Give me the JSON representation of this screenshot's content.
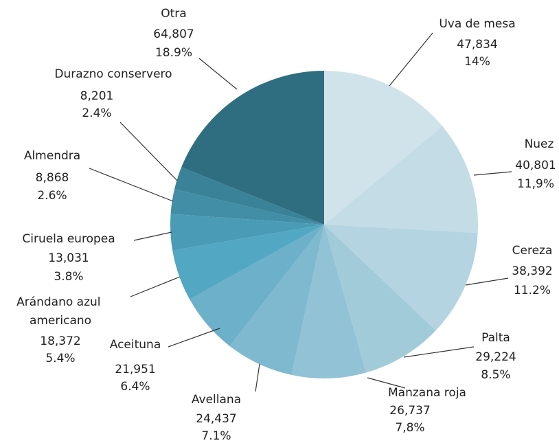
{
  "chart_data": {
    "type": "pie",
    "categories": [
      "Uva de mesa",
      "Nuez",
      "Cereza",
      "Palta",
      "Manzana roja",
      "Avellana",
      "Aceituna",
      "Arándano azul americano",
      "Ciruela europea",
      "Almendra",
      "Durazno conservero",
      "Otra"
    ],
    "values": [
      47834,
      40801,
      38392,
      29224,
      26737,
      24437,
      21951,
      18372,
      13031,
      8868,
      8201,
      64807
    ],
    "value_labels": [
      "47,834",
      "40,801",
      "38,392",
      "29,224",
      "26,737",
      "24,437",
      "21,951",
      "18,372",
      "13,031",
      "8,868",
      "8,201",
      "64,807"
    ],
    "percent_labels": [
      "14%",
      "11,9%",
      "11.2%",
      "8.5%",
      "7,8%",
      "7.1%",
      "6.4%",
      "5.4%",
      "3.8%",
      "2.6%",
      "2.4%",
      "18.9%"
    ],
    "colors": [
      "#d0e3ea",
      "#c3dce6",
      "#b3d4e0",
      "#a2cbda",
      "#92c2d5",
      "#7fb9cf",
      "#6cb0c9",
      "#52a7c2",
      "#4a9cb6",
      "#418ea6",
      "#3a8297",
      "#2f6e80"
    ]
  }
}
